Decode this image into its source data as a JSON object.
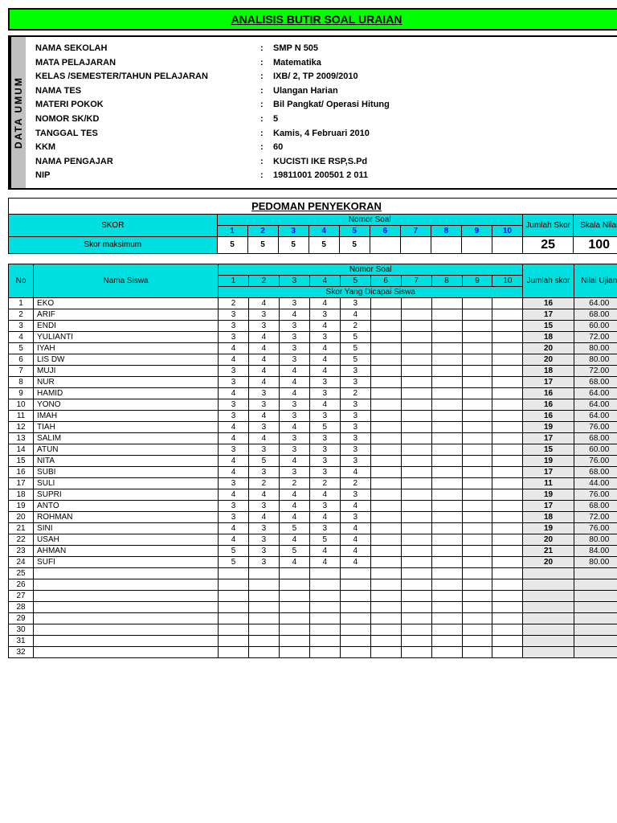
{
  "title": "ANALISIS BUTIR SOAL URAIAN",
  "umum": {
    "tab": "DATA UMUM",
    "rows": [
      {
        "label": "NAMA SEKOLAH",
        "value": "SMP N 505"
      },
      {
        "label": "MATA PELAJARAN",
        "value": "Matematika"
      },
      {
        "label": "KELAS /SEMESTER/TAHUN PELAJARAN",
        "value": "IXB/ 2, TP 2009/2010"
      },
      {
        "label": "NAMA TES",
        "value": "Ulangan Harian"
      },
      {
        "label": "MATERI POKOK",
        "value": "Bil Pangkat/ Operasi Hitung"
      },
      {
        "label": "NOMOR SK/KD",
        "value": "5"
      },
      {
        "label": "TANGGAL TES",
        "value": "Kamis, 4 Februari 2010"
      },
      {
        "label": "KKM",
        "value": "60"
      },
      {
        "label": "NAMA PENGAJAR",
        "value": "KUCISTI IKE RSP,S.Pd"
      },
      {
        "label": "NIP",
        "value": "19811001 200501 2 011"
      }
    ]
  },
  "pedoman": {
    "title": "PEDOMAN PENYEKORAN",
    "skor_label": "SKOR",
    "nomor_soal": "Nomor Soal",
    "jumlah_skor": "Jumlah Skor",
    "skala_nilai": "Skala Nilai",
    "maks_label": "Skor maksimum",
    "nums": [
      "1",
      "2",
      "3",
      "4",
      "5",
      "6",
      "7",
      "8",
      "9",
      "10"
    ],
    "maks": [
      "5",
      "5",
      "5",
      "5",
      "5",
      "",
      "",
      "",
      "",
      ""
    ],
    "jumlah": "25",
    "skala": "100"
  },
  "students": {
    "no": "No",
    "nama": "Nama Siswa",
    "nomor_soal": "Nomor Soal",
    "dicapai": "Skor Yang Dicapai Siswa",
    "jumlah": "Jumlah skor",
    "nilai": "Nilai Ujian",
    "nums": [
      "1",
      "2",
      "3",
      "4",
      "5",
      "6",
      "7",
      "8",
      "9",
      "10"
    ],
    "rows": [
      {
        "no": 1,
        "name": "EKO",
        "s": [
          "2",
          "4",
          "3",
          "4",
          "3",
          "",
          "",
          "",
          "",
          ""
        ],
        "j": "16",
        "n": "64.00"
      },
      {
        "no": 2,
        "name": "ARIF",
        "s": [
          "3",
          "3",
          "4",
          "3",
          "4",
          "",
          "",
          "",
          "",
          ""
        ],
        "j": "17",
        "n": "68.00"
      },
      {
        "no": 3,
        "name": "ENDI",
        "s": [
          "3",
          "3",
          "3",
          "4",
          "2",
          "",
          "",
          "",
          "",
          ""
        ],
        "j": "15",
        "n": "60.00"
      },
      {
        "no": 4,
        "name": "YULIANTI",
        "s": [
          "3",
          "4",
          "3",
          "3",
          "5",
          "",
          "",
          "",
          "",
          ""
        ],
        "j": "18",
        "n": "72.00"
      },
      {
        "no": 5,
        "name": "IYAH",
        "s": [
          "4",
          "4",
          "3",
          "4",
          "5",
          "",
          "",
          "",
          "",
          ""
        ],
        "j": "20",
        "n": "80.00"
      },
      {
        "no": 6,
        "name": "LIS DW",
        "s": [
          "4",
          "4",
          "3",
          "4",
          "5",
          "",
          "",
          "",
          "",
          ""
        ],
        "j": "20",
        "n": "80.00"
      },
      {
        "no": 7,
        "name": "MUJI",
        "s": [
          "3",
          "4",
          "4",
          "4",
          "3",
          "",
          "",
          "",
          "",
          ""
        ],
        "j": "18",
        "n": "72.00"
      },
      {
        "no": 8,
        "name": "NUR",
        "s": [
          "3",
          "4",
          "4",
          "3",
          "3",
          "",
          "",
          "",
          "",
          ""
        ],
        "j": "17",
        "n": "68.00"
      },
      {
        "no": 9,
        "name": "HAMID",
        "s": [
          "4",
          "3",
          "4",
          "3",
          "2",
          "",
          "",
          "",
          "",
          ""
        ],
        "j": "16",
        "n": "64.00"
      },
      {
        "no": 10,
        "name": "YONO",
        "s": [
          "3",
          "3",
          "3",
          "4",
          "3",
          "",
          "",
          "",
          "",
          ""
        ],
        "j": "16",
        "n": "64.00"
      },
      {
        "no": 11,
        "name": "IMAH",
        "s": [
          "3",
          "4",
          "3",
          "3",
          "3",
          "",
          "",
          "",
          "",
          ""
        ],
        "j": "16",
        "n": "64.00"
      },
      {
        "no": 12,
        "name": "TIAH",
        "s": [
          "4",
          "3",
          "4",
          "5",
          "3",
          "",
          "",
          "",
          "",
          ""
        ],
        "j": "19",
        "n": "76.00"
      },
      {
        "no": 13,
        "name": "SALIM",
        "s": [
          "4",
          "4",
          "3",
          "3",
          "3",
          "",
          "",
          "",
          "",
          ""
        ],
        "j": "17",
        "n": "68.00"
      },
      {
        "no": 14,
        "name": "ATUN",
        "s": [
          "3",
          "3",
          "3",
          "3",
          "3",
          "",
          "",
          "",
          "",
          ""
        ],
        "j": "15",
        "n": "60.00"
      },
      {
        "no": 15,
        "name": "NITA",
        "s": [
          "4",
          "5",
          "4",
          "3",
          "3",
          "",
          "",
          "",
          "",
          ""
        ],
        "j": "19",
        "n": "76.00"
      },
      {
        "no": 16,
        "name": "SUBI",
        "s": [
          "4",
          "3",
          "3",
          "3",
          "4",
          "",
          "",
          "",
          "",
          ""
        ],
        "j": "17",
        "n": "68.00"
      },
      {
        "no": 17,
        "name": "SULI",
        "s": [
          "3",
          "2",
          "2",
          "2",
          "2",
          "",
          "",
          "",
          "",
          ""
        ],
        "j": "11",
        "n": "44.00"
      },
      {
        "no": 18,
        "name": "SUPRI",
        "s": [
          "4",
          "4",
          "4",
          "4",
          "3",
          "",
          "",
          "",
          "",
          ""
        ],
        "j": "19",
        "n": "76.00"
      },
      {
        "no": 19,
        "name": "ANTO",
        "s": [
          "3",
          "3",
          "4",
          "3",
          "4",
          "",
          "",
          "",
          "",
          ""
        ],
        "j": "17",
        "n": "68.00"
      },
      {
        "no": 20,
        "name": "ROHMAN",
        "s": [
          "3",
          "4",
          "4",
          "4",
          "3",
          "",
          "",
          "",
          "",
          ""
        ],
        "j": "18",
        "n": "72.00"
      },
      {
        "no": 21,
        "name": "SINI",
        "s": [
          "4",
          "3",
          "5",
          "3",
          "4",
          "",
          "",
          "",
          "",
          ""
        ],
        "j": "19",
        "n": "76.00"
      },
      {
        "no": 22,
        "name": "USAH",
        "s": [
          "4",
          "3",
          "4",
          "5",
          "4",
          "",
          "",
          "",
          "",
          ""
        ],
        "j": "20",
        "n": "80.00"
      },
      {
        "no": 23,
        "name": "AHMAN",
        "s": [
          "5",
          "3",
          "5",
          "4",
          "4",
          "",
          "",
          "",
          "",
          ""
        ],
        "j": "21",
        "n": "84.00"
      },
      {
        "no": 24,
        "name": "SUFI",
        "s": [
          "5",
          "3",
          "4",
          "4",
          "4",
          "",
          "",
          "",
          "",
          ""
        ],
        "j": "20",
        "n": "80.00"
      },
      {
        "no": 25,
        "name": "",
        "s": [
          "",
          "",
          "",
          "",
          "",
          "",
          "",
          "",
          "",
          ""
        ],
        "j": "",
        "n": ""
      },
      {
        "no": 26,
        "name": "",
        "s": [
          "",
          "",
          "",
          "",
          "",
          "",
          "",
          "",
          "",
          ""
        ],
        "j": "",
        "n": ""
      },
      {
        "no": 27,
        "name": "",
        "s": [
          "",
          "",
          "",
          "",
          "",
          "",
          "",
          "",
          "",
          ""
        ],
        "j": "",
        "n": ""
      },
      {
        "no": 28,
        "name": "",
        "s": [
          "",
          "",
          "",
          "",
          "",
          "",
          "",
          "",
          "",
          ""
        ],
        "j": "",
        "n": ""
      },
      {
        "no": 29,
        "name": "",
        "s": [
          "",
          "",
          "",
          "",
          "",
          "",
          "",
          "",
          "",
          ""
        ],
        "j": "",
        "n": ""
      },
      {
        "no": 30,
        "name": "",
        "s": [
          "",
          "",
          "",
          "",
          "",
          "",
          "",
          "",
          "",
          ""
        ],
        "j": "",
        "n": ""
      },
      {
        "no": 31,
        "name": "",
        "s": [
          "",
          "",
          "",
          "",
          "",
          "",
          "",
          "",
          "",
          ""
        ],
        "j": "",
        "n": ""
      },
      {
        "no": 32,
        "name": "",
        "s": [
          "",
          "",
          "",
          "",
          "",
          "",
          "",
          "",
          "",
          ""
        ],
        "j": "",
        "n": ""
      }
    ]
  }
}
